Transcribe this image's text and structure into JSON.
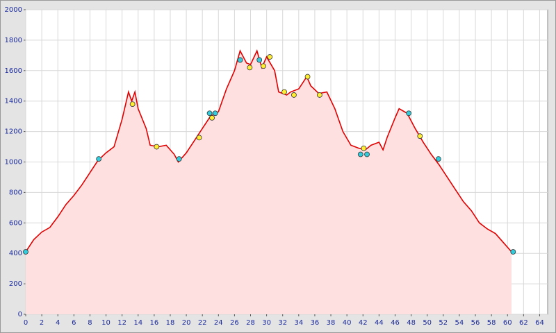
{
  "chart_data": {
    "type": "area",
    "x": [
      0,
      1,
      2,
      3,
      4,
      5,
      6,
      7,
      8,
      9,
      10,
      11,
      12,
      12.8,
      13.2,
      13.6,
      14,
      15,
      15.5,
      16.5,
      17.5,
      18.5,
      19,
      20,
      21,
      22,
      23,
      24,
      25,
      26,
      26.7,
      27.5,
      28,
      28.8,
      29.4,
      30,
      31,
      31.5,
      32.5,
      33,
      34,
      35,
      35.5,
      36.5,
      37.5,
      38.5,
      39.5,
      40.5,
      41.5,
      42.3,
      43,
      44,
      44.5,
      45,
      46,
      46.5,
      47.5,
      48.5,
      49.5,
      50.5,
      51.5,
      52.5,
      53.5,
      54.5,
      55.5,
      56.5,
      57.5,
      58.5,
      59.5,
      60.5
    ],
    "values": [
      410,
      490,
      540,
      570,
      640,
      720,
      780,
      850,
      930,
      1010,
      1060,
      1100,
      1280,
      1460,
      1400,
      1460,
      1350,
      1220,
      1110,
      1100,
      1110,
      1050,
      1000,
      1060,
      1140,
      1220,
      1300,
      1330,
      1480,
      1600,
      1730,
      1650,
      1640,
      1730,
      1620,
      1690,
      1600,
      1460,
      1440,
      1460,
      1480,
      1560,
      1500,
      1450,
      1460,
      1350,
      1200,
      1110,
      1090,
      1080,
      1110,
      1130,
      1080,
      1160,
      1290,
      1350,
      1320,
      1220,
      1130,
      1050,
      980,
      900,
      820,
      740,
      680,
      600,
      560,
      530,
      470,
      410
    ],
    "color": "#e00000",
    "fill": "#ffe0e0",
    "markers": [
      {
        "color": "#33ccdd",
        "x": [
          0,
          9.1,
          19.1,
          22.9,
          23.6,
          26.7,
          29.1,
          41.7,
          42.5,
          47.7,
          51.4,
          60.7
        ],
        "values": [
          410,
          1020,
          1020,
          1320,
          1320,
          1670,
          1670,
          1050,
          1050,
          1320,
          1020,
          410
        ]
      },
      {
        "color": "#ffee33",
        "x": [
          13.3,
          16.3,
          21.6,
          23.2,
          27.9,
          29.6,
          30.4,
          32.2,
          33.4,
          35.1,
          36.6,
          42.1,
          49.1
        ],
        "values": [
          1380,
          1100,
          1160,
          1290,
          1620,
          1630,
          1690,
          1460,
          1440,
          1560,
          1440,
          1090,
          1170
        ]
      }
    ],
    "xlim": [
      0,
      65
    ],
    "xticks": [
      0,
      2,
      4,
      6,
      8,
      10,
      12,
      14,
      16,
      18,
      20,
      22,
      24,
      26,
      28,
      30,
      32,
      34,
      36,
      38,
      40,
      42,
      44,
      46,
      48,
      50,
      52,
      54,
      56,
      58,
      60,
      62,
      64
    ],
    "ylim": [
      0,
      2000
    ],
    "yticks": [
      0,
      200,
      400,
      600,
      800,
      1000,
      1200,
      1400,
      1600,
      1800,
      2000
    ],
    "grid": true
  }
}
